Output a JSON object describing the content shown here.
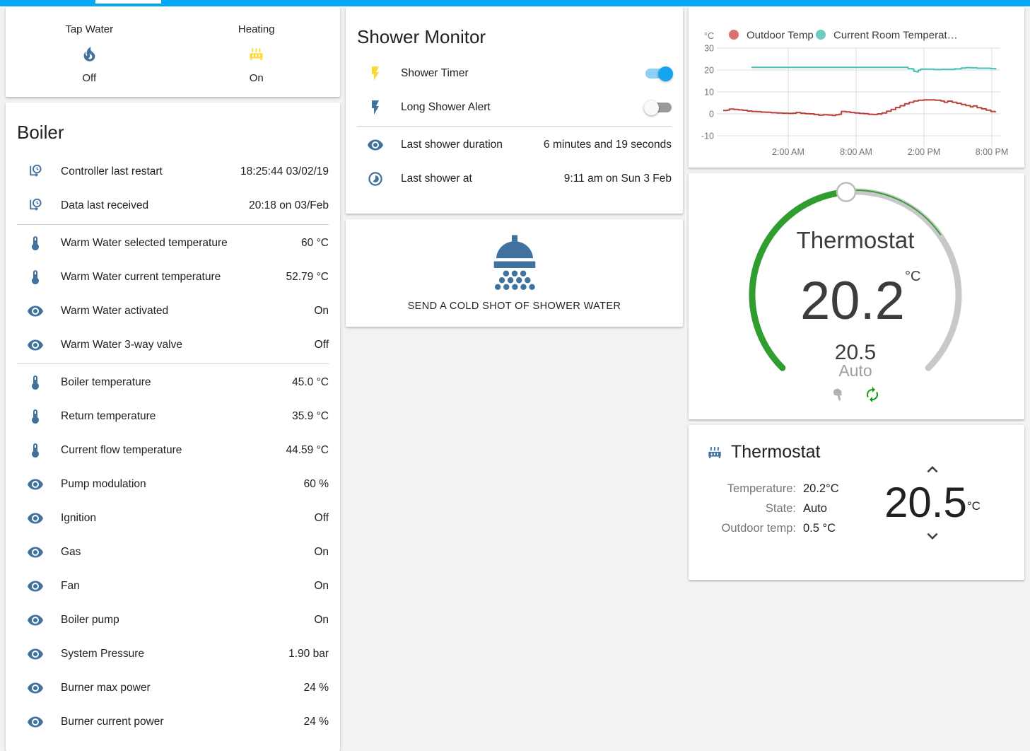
{
  "colors": {
    "accent": "#03a9f4",
    "icon_blue": "#41729e",
    "icon_yellow": "#fdd835",
    "dial_active": "#2f9e2f",
    "dial_track": "#c8c8c8",
    "toggle_on_knob": "#15a3f2",
    "toggle_on_track": "#8ed1f7",
    "outdoor_red": "#b9413a",
    "room_teal": "#44c2b9"
  },
  "glance": {
    "items": [
      {
        "label": "Tap Water",
        "icon": "fire-icon",
        "icon_color": "#41729e",
        "state": "Off"
      },
      {
        "label": "Heating",
        "icon": "radiator-icon",
        "icon_color": "#fdd835",
        "state": "On"
      }
    ]
  },
  "boiler": {
    "title": "Boiler",
    "rows": [
      {
        "icon": "clock-start-icon",
        "label": "Controller last restart",
        "value": "18:25:44 03/02/19"
      },
      {
        "icon": "clock-start-icon",
        "label": "Data last received",
        "value": "20:18 on 03/Feb",
        "divider_after": true
      },
      {
        "icon": "thermometer-icon",
        "label": "Warm Water selected temperature",
        "value": "60 °C"
      },
      {
        "icon": "thermometer-icon",
        "label": "Warm Water current temperature",
        "value": "52.79 °C"
      },
      {
        "icon": "eye-icon",
        "label": "Warm Water activated",
        "value": "On"
      },
      {
        "icon": "eye-icon",
        "label": "Warm Water 3-way valve",
        "value": "Off",
        "divider_after": true
      },
      {
        "icon": "thermometer-icon",
        "label": "Boiler temperature",
        "value": "45.0 °C"
      },
      {
        "icon": "thermometer-icon",
        "label": "Return temperature",
        "value": "35.9 °C"
      },
      {
        "icon": "thermometer-icon",
        "label": "Current flow temperature",
        "value": "44.59 °C"
      },
      {
        "icon": "eye-icon",
        "label": "Pump modulation",
        "value": "60 %"
      },
      {
        "icon": "eye-icon",
        "label": "Ignition",
        "value": "Off"
      },
      {
        "icon": "eye-icon",
        "label": "Gas",
        "value": "On"
      },
      {
        "icon": "eye-icon",
        "label": "Fan",
        "value": "On"
      },
      {
        "icon": "eye-icon",
        "label": "Boiler pump",
        "value": "On"
      },
      {
        "icon": "eye-icon",
        "label": "System Pressure",
        "value": "1.90 bar"
      },
      {
        "icon": "eye-icon",
        "label": "Burner max power",
        "value": "24 %"
      },
      {
        "icon": "eye-icon",
        "label": "Burner current power",
        "value": "24 %"
      }
    ]
  },
  "shower_monitor": {
    "title": "Shower Monitor",
    "toggles": [
      {
        "icon": "flash-icon",
        "icon_color": "#fdd835",
        "label": "Shower Timer",
        "on": true
      },
      {
        "icon": "flash-icon",
        "icon_color": "#41729e",
        "label": "Long Shower Alert",
        "on": false
      }
    ],
    "info": [
      {
        "icon": "eye-icon",
        "label": "Last shower duration",
        "value": "6 minutes and 19 seconds"
      },
      {
        "icon": "clock-icon",
        "label": "Last shower at",
        "value": "9:11 am on Sun 3 Feb"
      }
    ]
  },
  "shower_action": {
    "label": "SEND A COLD SHOT OF SHOWER WATER",
    "icon": "shower-head-icon"
  },
  "chart_data": {
    "type": "line",
    "title": "",
    "ylabel": "°C",
    "ylim": [
      -10,
      30
    ],
    "yticks": [
      30,
      20,
      10,
      0,
      -10
    ],
    "xticks": [
      "2:00 AM",
      "8:00 AM",
      "2:00 PM",
      "8:00 PM"
    ],
    "xtick_hours": [
      2,
      8,
      14,
      20
    ],
    "xlim_hours": [
      -4.1,
      20.9
    ],
    "grid": true,
    "legend_position": "top",
    "series": [
      {
        "name": "Outdoor Temp",
        "color": "#b9413a",
        "dot": "#d9726f",
        "step": true,
        "points": [
          [
            -3.75,
            1.5
          ],
          [
            -3.4,
            1.7
          ],
          [
            -3.2,
            2.2
          ],
          [
            -2.8,
            2.0
          ],
          [
            -2.4,
            1.8
          ],
          [
            -2.0,
            1.6
          ],
          [
            -1.6,
            1.3
          ],
          [
            -1.2,
            1.1
          ],
          [
            -0.8,
            1.0
          ],
          [
            -0.4,
            0.8
          ],
          [
            0,
            0.7
          ],
          [
            0.5,
            0.5
          ],
          [
            1.0,
            0.4
          ],
          [
            1.5,
            0.3
          ],
          [
            2.0,
            0.2
          ],
          [
            2.4,
            0.3
          ],
          [
            2.7,
            0.6
          ],
          [
            3.1,
            0.3
          ],
          [
            3.5,
            0.1
          ],
          [
            3.9,
            0.0
          ],
          [
            4.3,
            -0.3
          ],
          [
            4.7,
            -0.6
          ],
          [
            5.1,
            -0.4
          ],
          [
            5.5,
            -0.5
          ],
          [
            5.9,
            -0.7
          ],
          [
            6.2,
            -0.4
          ],
          [
            6.5,
            -0.2
          ],
          [
            6.7,
            1.1
          ],
          [
            7.1,
            0.9
          ],
          [
            7.5,
            0.6
          ],
          [
            7.9,
            0.4
          ],
          [
            8.3,
            0.2
          ],
          [
            8.7,
            0.1
          ],
          [
            9.1,
            -0.2
          ],
          [
            9.5,
            -0.3
          ],
          [
            9.9,
            0.0
          ],
          [
            10.3,
            0.4
          ],
          [
            10.7,
            1.2
          ],
          [
            11.1,
            2.0
          ],
          [
            11.5,
            2.9
          ],
          [
            11.9,
            3.7
          ],
          [
            12.3,
            4.6
          ],
          [
            12.7,
            5.3
          ],
          [
            13.1,
            5.9
          ],
          [
            13.5,
            6.2
          ],
          [
            14.0,
            6.4
          ],
          [
            14.5,
            6.4
          ],
          [
            15.0,
            6.2
          ],
          [
            15.5,
            5.9
          ],
          [
            15.8,
            5.3
          ],
          [
            16.1,
            5.8
          ],
          [
            16.5,
            5.3
          ],
          [
            16.9,
            4.8
          ],
          [
            17.3,
            4.3
          ],
          [
            17.7,
            3.8
          ],
          [
            18.1,
            3.2
          ],
          [
            18.35,
            3.6
          ],
          [
            18.7,
            2.8
          ],
          [
            19.1,
            2.3
          ],
          [
            19.5,
            1.7
          ],
          [
            19.9,
            1.1
          ],
          [
            20.3,
            0.6
          ]
        ]
      },
      {
        "name": "Current Room Temperat…",
        "color": "#44c2b9",
        "dot": "#6fcac3",
        "step": true,
        "points": [
          [
            -1.25,
            21.2
          ],
          [
            12.45,
            21.2
          ],
          [
            12.6,
            20.6
          ],
          [
            12.95,
            20.5
          ],
          [
            13.1,
            19.4
          ],
          [
            13.3,
            19.2
          ],
          [
            13.5,
            19.9
          ],
          [
            13.7,
            20.4
          ],
          [
            14.3,
            20.4
          ],
          [
            14.9,
            20.2
          ],
          [
            15.5,
            20.3
          ],
          [
            16.1,
            20.3
          ],
          [
            16.7,
            20.5
          ],
          [
            17.3,
            20.9
          ],
          [
            17.7,
            21.1
          ],
          [
            18.1,
            21.0
          ],
          [
            18.7,
            20.8
          ],
          [
            19.3,
            20.8
          ],
          [
            19.9,
            20.6
          ],
          [
            20.35,
            20.3
          ]
        ]
      }
    ]
  },
  "dial": {
    "title": "Thermostat",
    "current": "20.2",
    "unit": "°C",
    "target": "20.5",
    "mode": "Auto"
  },
  "thermostat_card": {
    "title": "Thermostat",
    "rows": [
      {
        "key": "Temperature:",
        "value": "20.2°C"
      },
      {
        "key": "State:",
        "value": "Auto"
      },
      {
        "key": "Outdoor temp:",
        "value": "0.5 °C"
      }
    ],
    "setpoint": "20.5",
    "setpoint_unit": "°C"
  }
}
